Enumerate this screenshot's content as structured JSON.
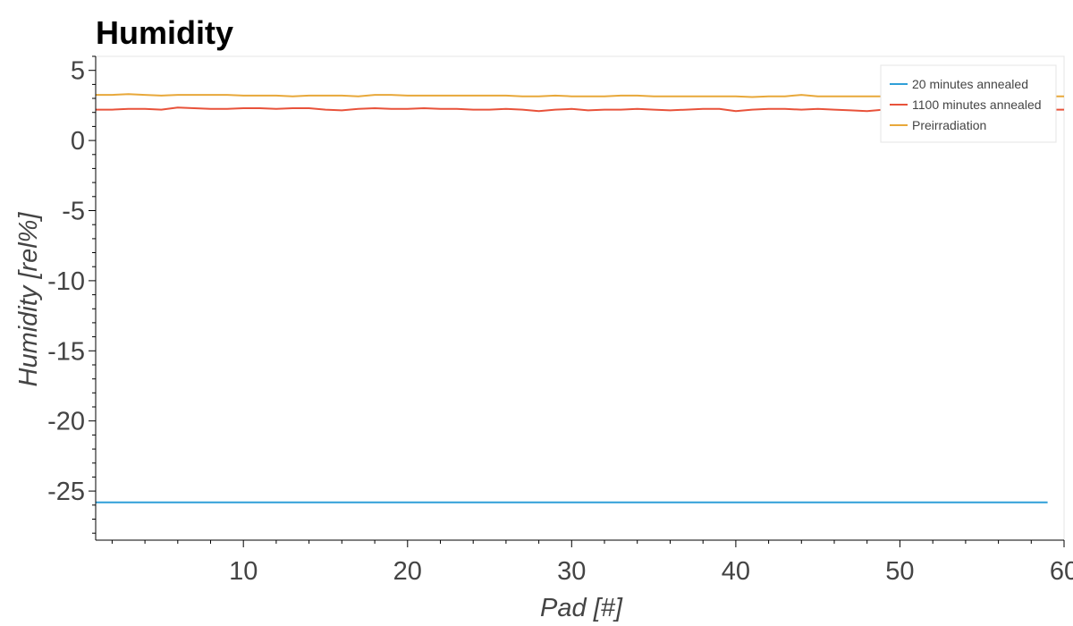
{
  "chart_data": {
    "type": "line",
    "title": "Humidity",
    "xlabel": "Pad [#]",
    "ylabel": "Humidity [rel%]",
    "xlim": [
      1,
      60
    ],
    "ylim": [
      -28.5,
      6
    ],
    "xticks": [
      10,
      20,
      30,
      40,
      50,
      60
    ],
    "yticks": [
      5,
      0,
      -5,
      -10,
      -15,
      -20,
      -25
    ],
    "legend_position": "top-right",
    "series": [
      {
        "name": "20 minutes annealed",
        "color": "#2f9fd8",
        "x": [
          1,
          59
        ],
        "values": [
          -25.8,
          -25.8
        ]
      },
      {
        "name": "1100 minutes annealed",
        "color": "#e8523a",
        "x": [
          1,
          2,
          3,
          4,
          5,
          6,
          7,
          8,
          9,
          10,
          11,
          12,
          13,
          14,
          15,
          16,
          17,
          18,
          19,
          20,
          21,
          22,
          23,
          24,
          25,
          26,
          27,
          28,
          29,
          30,
          31,
          32,
          33,
          34,
          35,
          36,
          37,
          38,
          39,
          40,
          41,
          42,
          43,
          44,
          45,
          46,
          47,
          48,
          49,
          50,
          51,
          52,
          53,
          54,
          55,
          56,
          57,
          58,
          59,
          60
        ],
        "values": [
          2.2,
          2.2,
          2.25,
          2.25,
          2.2,
          2.35,
          2.3,
          2.25,
          2.25,
          2.3,
          2.3,
          2.25,
          2.3,
          2.3,
          2.2,
          2.15,
          2.25,
          2.3,
          2.25,
          2.25,
          2.3,
          2.25,
          2.25,
          2.2,
          2.2,
          2.25,
          2.2,
          2.1,
          2.2,
          2.25,
          2.15,
          2.2,
          2.2,
          2.25,
          2.2,
          2.15,
          2.2,
          2.25,
          2.25,
          2.1,
          2.2,
          2.25,
          2.25,
          2.2,
          2.25,
          2.2,
          2.15,
          2.1,
          2.2,
          2.2,
          2.2,
          2.2,
          2.2,
          2.2,
          2.2,
          2.2,
          2.2,
          2.2,
          2.2,
          2.2
        ]
      },
      {
        "name": "Preirradiation",
        "color": "#e8a83a",
        "x": [
          1,
          2,
          3,
          4,
          5,
          6,
          7,
          8,
          9,
          10,
          11,
          12,
          13,
          14,
          15,
          16,
          17,
          18,
          19,
          20,
          21,
          22,
          23,
          24,
          25,
          26,
          27,
          28,
          29,
          30,
          31,
          32,
          33,
          34,
          35,
          36,
          37,
          38,
          39,
          40,
          41,
          42,
          43,
          44,
          45,
          46,
          47,
          48,
          49,
          50,
          51,
          52,
          53,
          54,
          55,
          56,
          57,
          58,
          59,
          60
        ],
        "values": [
          3.25,
          3.25,
          3.3,
          3.25,
          3.2,
          3.25,
          3.25,
          3.25,
          3.25,
          3.2,
          3.2,
          3.2,
          3.15,
          3.2,
          3.2,
          3.2,
          3.15,
          3.25,
          3.25,
          3.2,
          3.2,
          3.2,
          3.2,
          3.2,
          3.2,
          3.2,
          3.15,
          3.15,
          3.2,
          3.15,
          3.15,
          3.15,
          3.2,
          3.2,
          3.15,
          3.15,
          3.15,
          3.15,
          3.15,
          3.15,
          3.1,
          3.15,
          3.15,
          3.25,
          3.15,
          3.15,
          3.15,
          3.15,
          3.15,
          3.2,
          3.15,
          3.15,
          3.15,
          3.15,
          3.15,
          3.15,
          3.15,
          3.15,
          3.15,
          3.15
        ]
      }
    ]
  }
}
